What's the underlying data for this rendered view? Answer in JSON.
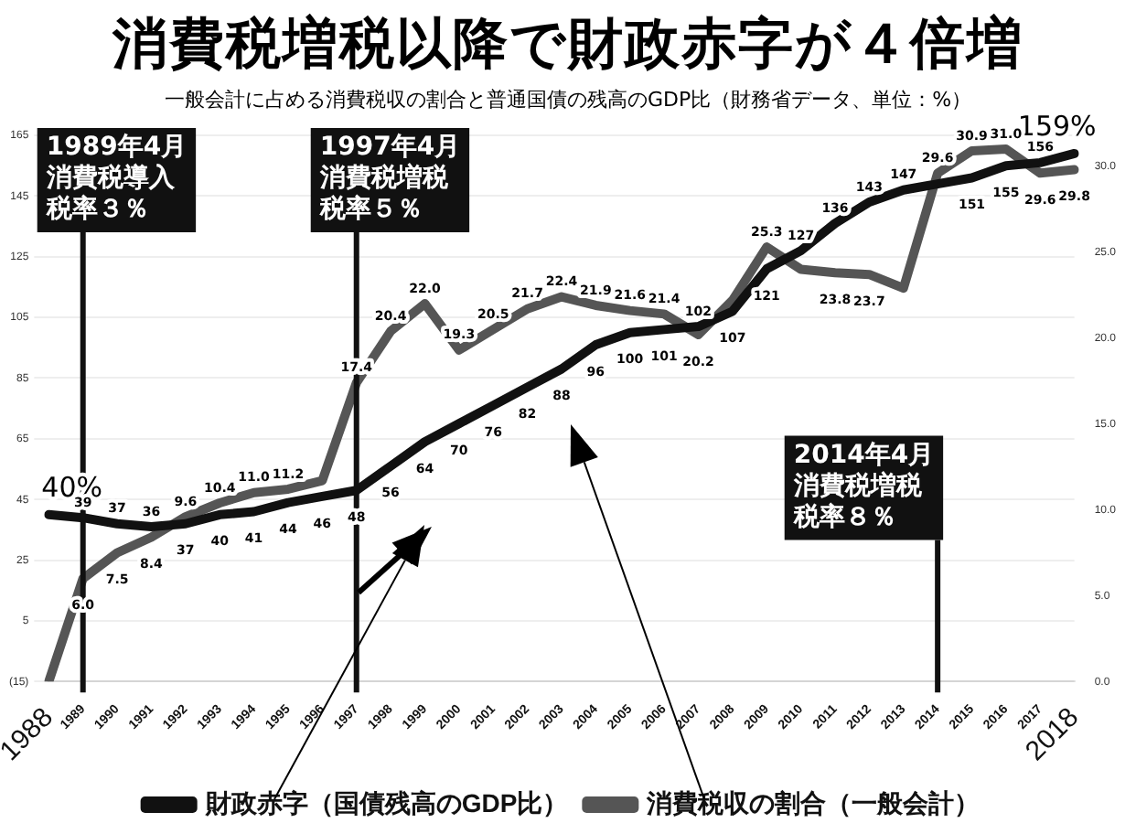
{
  "chart_data": {
    "type": "line",
    "title": "消費税増税以降で財政赤字が４倍増",
    "subtitle": "一般会計に占める消費税収の割合と普通国債の残高のGDP比（財務省データ、単位：%）",
    "categories": [
      "1988",
      "1989",
      "1990",
      "1991",
      "1992",
      "1993",
      "1994",
      "1995",
      "1996",
      "1997",
      "1998",
      "1999",
      "2000",
      "2001",
      "2002",
      "2003",
      "2004",
      "2005",
      "2006",
      "2007",
      "2008",
      "2009",
      "2010",
      "2011",
      "2012",
      "2013",
      "2014",
      "2015",
      "2016",
      "2017",
      "2018"
    ],
    "series": [
      {
        "name": "財政赤字（国債残高のGDP比）",
        "color": "#111111",
        "values": [
          40,
          39,
          37,
          36,
          37,
          40,
          41,
          44,
          46,
          48,
          56,
          64,
          70,
          76,
          82,
          88,
          96,
          100,
          101,
          102,
          107,
          121,
          127,
          136,
          143,
          147,
          149,
          151,
          155,
          156,
          159
        ],
        "value_labels": [
          "40%",
          "39",
          "37",
          "36",
          "37",
          "40",
          "41",
          "44",
          "46",
          "48",
          "56",
          "64",
          "70",
          "76",
          "82",
          "88",
          "96",
          "100",
          "101",
          "102",
          "107",
          "121",
          "127",
          "136",
          "143",
          "147",
          null,
          "151",
          "155",
          "156",
          "159%"
        ]
      },
      {
        "name": "消費税収の割合（一般会計）",
        "color": "#555555",
        "axis": "y2",
        "values": [
          0,
          6.0,
          7.5,
          8.4,
          9.6,
          10.4,
          11.0,
          11.2,
          11.7,
          17.4,
          20.4,
          22.0,
          19.3,
          20.5,
          21.7,
          22.4,
          21.9,
          21.6,
          21.4,
          20.2,
          22.2,
          25.3,
          24.0,
          23.8,
          23.7,
          22.9,
          29.6,
          30.9,
          31.0,
          29.6,
          29.8
        ],
        "value_labels": [
          null,
          "6.0",
          "7.5",
          "8.4",
          "9.6",
          "10.4",
          "11.0",
          "11.2",
          null,
          "17.4",
          "20.4",
          "22.0",
          "19.3",
          "20.5",
          "21.7",
          "22.4",
          "21.9",
          "21.6",
          "21.4",
          "20.2",
          null,
          "25.3",
          null,
          "23.8",
          "23.7",
          null,
          "29.6",
          "30.9",
          "31.0",
          "29.6",
          "29.8"
        ]
      }
    ],
    "ylim": [
      -15,
      165
    ],
    "yticks": [
      {
        "value": -15,
        "label": "(15)"
      },
      5,
      25,
      45,
      65,
      85,
      105,
      125,
      145,
      165
    ],
    "y2lim": [
      0,
      31.8
    ],
    "y2ticks": [
      {
        "value": 0,
        "label": "0.0"
      },
      {
        "value": 5,
        "label": "5.0"
      },
      {
        "value": 10,
        "label": "10.0"
      },
      {
        "value": 15,
        "label": "15.0"
      },
      {
        "value": 20,
        "label": "20.0"
      },
      {
        "value": 25,
        "label": "25.0"
      },
      {
        "value": 30,
        "label": "30.0"
      }
    ],
    "ref_lines": [
      {
        "axis": "x",
        "value": "1989",
        "label": "1989年4月消費税導入税率３％"
      },
      {
        "axis": "x",
        "value": "1997",
        "label": "1997年4月消費税増税税率５％"
      },
      {
        "axis": "x",
        "value": "2014",
        "label": "2014年4月消費税増税税率８％"
      }
    ],
    "grid": "y",
    "legend": "bottom",
    "marker": "none",
    "line_style": "solid"
  }
}
